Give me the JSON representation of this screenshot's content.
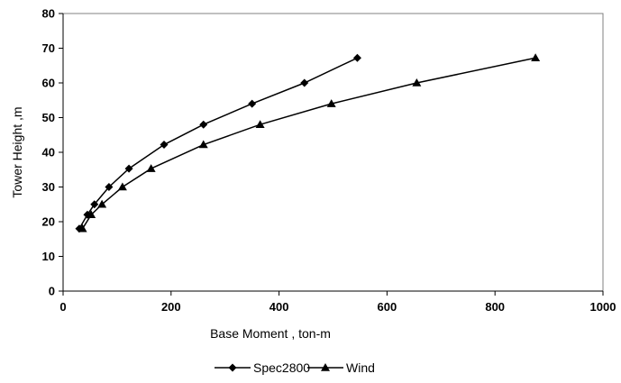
{
  "chart_data": {
    "type": "line",
    "title": "",
    "xlabel": "Base Moment , ton-m",
    "ylabel": "Tower Height ,m",
    "xlim": [
      0,
      1000
    ],
    "ylim": [
      0,
      80
    ],
    "xticks": [
      0,
      200,
      400,
      600,
      800,
      1000
    ],
    "yticks": [
      0,
      10,
      20,
      30,
      40,
      50,
      60,
      70,
      80
    ],
    "xtick_labels": [
      "0",
      "200",
      "400",
      "600",
      "800",
      "1000"
    ],
    "ytick_labels": [
      "0",
      "10",
      "20",
      "30",
      "40",
      "50",
      "60",
      "70",
      "80"
    ],
    "grid": false,
    "legend_position": "bottom",
    "series": [
      {
        "name": "Spec2800",
        "marker": "diamond",
        "color": "#000000",
        "x": [
          30,
          45,
          58,
          85,
          122,
          187,
          260,
          350,
          447,
          545
        ],
        "y": [
          18,
          22,
          25,
          30,
          35.3,
          42.2,
          48,
          54,
          60,
          67.2
        ]
      },
      {
        "name": "Wind",
        "marker": "triangle",
        "color": "#000000",
        "x": [
          36,
          52,
          72,
          110,
          163,
          260,
          365,
          497,
          655,
          875
        ],
        "y": [
          18,
          22,
          25,
          30,
          35.3,
          42.2,
          48,
          54,
          60,
          67.2
        ]
      }
    ]
  }
}
